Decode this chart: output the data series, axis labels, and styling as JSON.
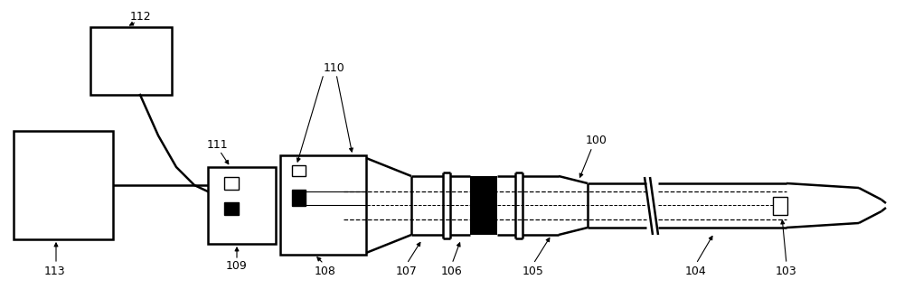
{
  "bg_color": "#ffffff",
  "line_color": "#000000",
  "fig_width": 10.0,
  "fig_height": 3.2,
  "dpi": 100
}
